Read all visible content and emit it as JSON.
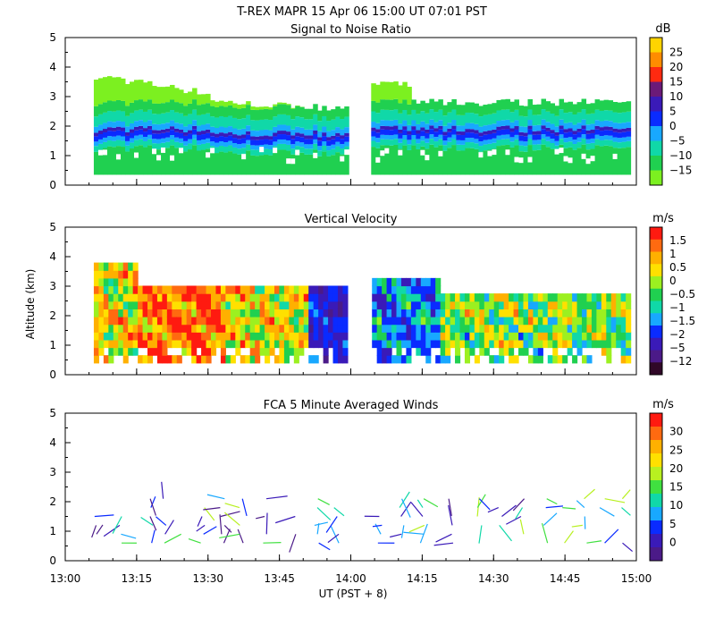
{
  "header": {
    "title": "T-REX   MAPR 15 Apr 06   15:00 UT   07:01   PST"
  },
  "x_axis": {
    "label": "UT  (PST + 8)",
    "range": [
      13.0,
      15.0
    ],
    "ticks": [
      {
        "v": 13.0,
        "label": "13:00"
      },
      {
        "v": 13.25,
        "label": "13:15"
      },
      {
        "v": 13.5,
        "label": "13:30"
      },
      {
        "v": 13.75,
        "label": "13:45"
      },
      {
        "v": 14.0,
        "label": "14:00"
      },
      {
        "v": 14.25,
        "label": "14:15"
      },
      {
        "v": 14.5,
        "label": "14:30"
      },
      {
        "v": 14.75,
        "label": "14:45"
      },
      {
        "v": 15.0,
        "label": "15:00"
      }
    ]
  },
  "y_axis": {
    "label": "Altitude (km)",
    "range": [
      0,
      5
    ],
    "tick_labels": [
      "0",
      "1",
      "2",
      "3",
      "4",
      "5"
    ]
  },
  "chart_data": [
    {
      "type": "heatmap",
      "title": "Signal to Noise Ratio",
      "unit": "dB",
      "xlabel": "UT  (PST + 8)",
      "ylabel": "",
      "xlim": [
        13.0,
        15.0
      ],
      "ylim": [
        0,
        5
      ],
      "data_gap": [
        13.98,
        14.07
      ],
      "colorbar": {
        "labels": [
          "25",
          "20",
          "15",
          "10",
          "5",
          "0",
          "−5",
          "−10",
          "−15"
        ],
        "colors": [
          "#FFD400",
          "#FF8C00",
          "#FF2A10",
          "#6B1A78",
          "#3A1AB8",
          "#0A2BFF",
          "#18A8FF",
          "#10D8A8",
          "#20D050",
          "#7CF020"
        ]
      },
      "profile": [
        {
          "z": 0.35,
          "snr": -10
        },
        {
          "z": 0.8,
          "snr": -9
        },
        {
          "z": 1.2,
          "snr": -6
        },
        {
          "z": 1.55,
          "snr": 0
        },
        {
          "z": 1.75,
          "snr": 4
        },
        {
          "z": 2.0,
          "snr": -3
        },
        {
          "z": 2.4,
          "snr": -8
        },
        {
          "z": 2.8,
          "snr": -12
        },
        {
          "z": 3.4,
          "snr": -14
        }
      ]
    },
    {
      "type": "heatmap",
      "title": "Vertical Velocity",
      "unit": "m/s",
      "ylabel": "Altitude (km)",
      "xlim": [
        13.0,
        15.0
      ],
      "ylim": [
        0,
        5
      ],
      "data_gap": [
        13.98,
        14.07
      ],
      "colorbar": {
        "labels": [
          "1.5",
          "1",
          "0.5",
          "0",
          "−0.5",
          "−1",
          "−1.5",
          "−2",
          "−5",
          "−12"
        ],
        "colors": [
          "#FF1A10",
          "#FF6A10",
          "#FFB000",
          "#FFE000",
          "#9CF020",
          "#20D050",
          "#10D8A8",
          "#18A8FF",
          "#0A2BFF",
          "#3A1AB8",
          "#4B1A88",
          "#300828"
        ]
      },
      "regions": [
        {
          "x": [
            13.0,
            13.25
          ],
          "w_mean": 0.1
        },
        {
          "x": [
            13.25,
            13.55
          ],
          "w_mean": 1.2
        },
        {
          "x": [
            13.55,
            13.85
          ],
          "w_mean": 0.2
        },
        {
          "x": [
            13.85,
            14.0
          ],
          "w_mean": -3
        },
        {
          "x": [
            14.07,
            14.3
          ],
          "w_mean": -2
        },
        {
          "x": [
            14.3,
            15.0
          ],
          "w_mean": -0.5
        }
      ]
    },
    {
      "type": "scatter",
      "subtype": "wind-barbs",
      "title": "FCA 5 Minute Averaged Winds",
      "unit": "m/s",
      "xlim": [
        13.0,
        15.0
      ],
      "ylim": [
        0,
        5
      ],
      "colorbar": {
        "labels": [
          "30",
          "25",
          "20",
          "15",
          "10",
          "5",
          "0"
        ],
        "colors": [
          "#FF1A10",
          "#FF6A10",
          "#FFB000",
          "#FFE000",
          "#B8F020",
          "#40E040",
          "#10D8A8",
          "#18A8FF",
          "#0A2BFF",
          "#3A1AB8",
          "#4B1A88"
        ]
      },
      "times": [
        13.1,
        13.2,
        13.3,
        13.35,
        13.48,
        13.55,
        13.62,
        13.7,
        13.8,
        13.88,
        13.95,
        14.1,
        14.18,
        14.25,
        14.35,
        14.45,
        14.52,
        14.6,
        14.68,
        14.75,
        14.82,
        14.88,
        14.95
      ],
      "altitudes": [
        0.6,
        0.9,
        1.2,
        1.5,
        1.8,
        2.1
      ]
    }
  ]
}
